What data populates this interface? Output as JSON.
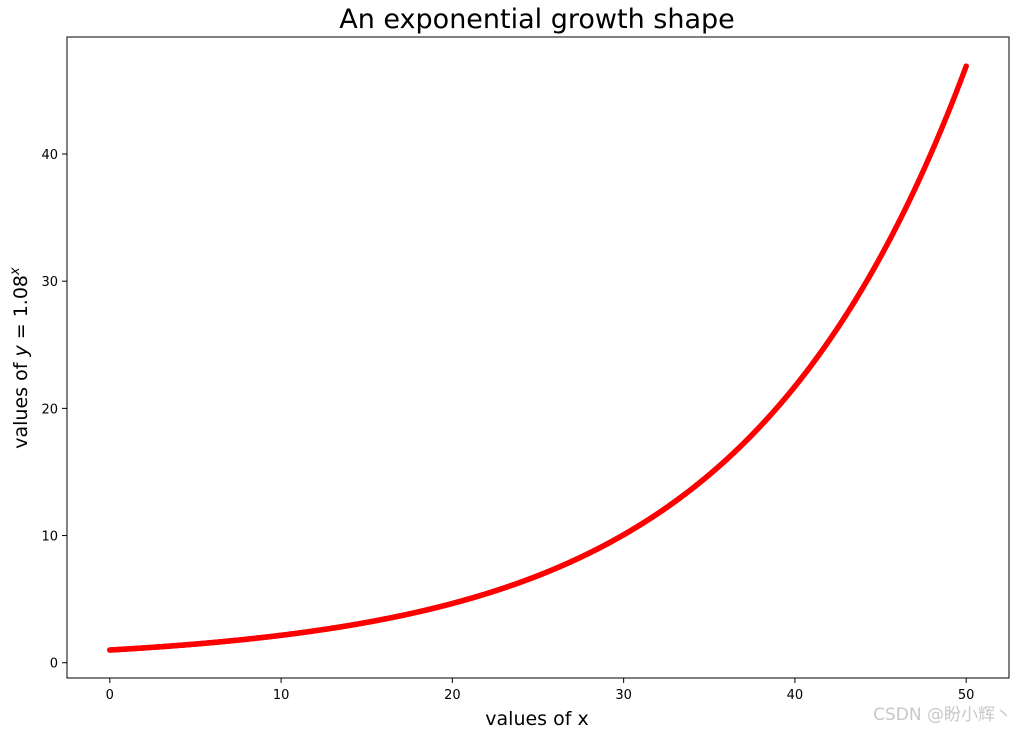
{
  "chart_data": {
    "type": "scatter",
    "title": "An exponential growth shape",
    "xlabel": "values of x",
    "ylabel_prefix": "values of ",
    "ylabel_var": "y",
    "ylabel_eq": " = 1.08",
    "ylabel_exp": "x",
    "function": {
      "base": 1.08,
      "x_start": 0,
      "x_end": 50
    },
    "point_count": 1000,
    "marker_color": "#ff0000",
    "xlim": [
      -2.5,
      52.5
    ],
    "ylim": [
      -1.2,
      49.2
    ],
    "xticks": [
      0,
      10,
      20,
      30,
      40,
      50
    ],
    "yticks": [
      0,
      10,
      20,
      30,
      40
    ],
    "grid": false,
    "legend": "none"
  },
  "watermark": "CSDN @盼小辉丶"
}
